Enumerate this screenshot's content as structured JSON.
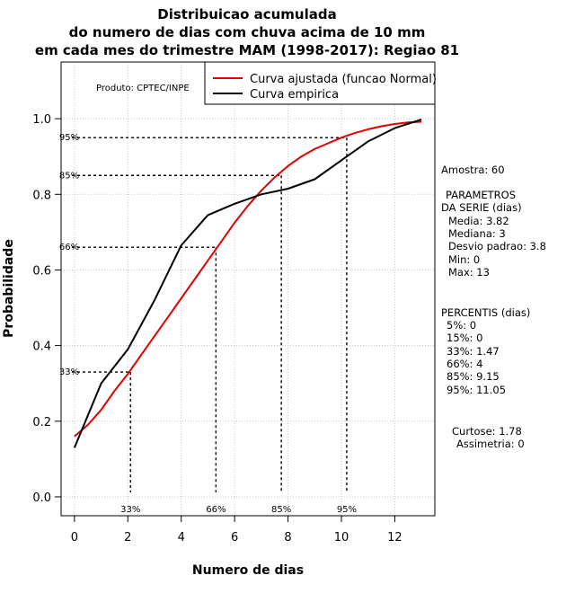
{
  "chart_data": {
    "type": "line",
    "title": [
      "Distribuicao acumulada",
      "do numero de dias com chuva acima de 10 mm",
      "em cada mes do trimestre MAM (1998-2017): Regiao 81"
    ],
    "xlabel": "Numero de dias",
    "ylabel": "Probabilidade",
    "xlim": [
      -0.5,
      13.5
    ],
    "ylim": [
      -0.05,
      1.15
    ],
    "xticks": [
      0,
      2,
      4,
      6,
      8,
      10,
      12
    ],
    "yticks": [
      0.0,
      0.2,
      0.4,
      0.6,
      0.8,
      1.0
    ],
    "xtick_labels": [
      "0",
      "2",
      "4",
      "6",
      "8",
      "10",
      "12"
    ],
    "ytick_labels": [
      "0.0",
      "0.2",
      "0.4",
      "0.6",
      "0.8",
      "1.0"
    ],
    "grid": true,
    "product_label": "Produto: CPTEC/INPE",
    "legend_position": "top-right",
    "series": [
      {
        "name": "Curva ajustada (funcao Normal)",
        "color": "#e00000",
        "x": [
          0,
          0.5,
          1,
          1.5,
          2,
          2.5,
          3,
          3.5,
          4,
          4.5,
          5,
          5.5,
          6,
          6.5,
          7,
          7.5,
          8,
          8.5,
          9,
          9.5,
          10,
          10.5,
          11,
          11.5,
          12,
          12.5,
          13
        ],
        "values": [
          0.16,
          0.19,
          0.23,
          0.28,
          0.325,
          0.375,
          0.425,
          0.475,
          0.525,
          0.575,
          0.625,
          0.675,
          0.725,
          0.77,
          0.81,
          0.845,
          0.875,
          0.9,
          0.92,
          0.935,
          0.95,
          0.962,
          0.972,
          0.98,
          0.986,
          0.99,
          0.992
        ]
      },
      {
        "name": "Curva empirica",
        "color": "#000000",
        "x": [
          0,
          1,
          2,
          3,
          4,
          5,
          6,
          7,
          8,
          9,
          10,
          11,
          12,
          13
        ],
        "values": [
          0.13,
          0.3,
          0.39,
          0.52,
          0.665,
          0.745,
          0.775,
          0.8,
          0.815,
          0.84,
          0.89,
          0.94,
          0.975,
          0.998
        ]
      }
    ],
    "percentile_markers": [
      {
        "label": "33%",
        "prob": 0.33,
        "x": 2.1
      },
      {
        "label": "66%",
        "prob": 0.66,
        "x": 5.3
      },
      {
        "label": "85%",
        "prob": 0.85,
        "x": 7.75
      },
      {
        "label": "95%",
        "prob": 0.95,
        "x": 10.2
      }
    ]
  },
  "side_panel": {
    "amostra": "Amostra: 60",
    "parametros_header_1": "PARAMETROS",
    "parametros_header_2": "DA SERIE (dias)",
    "parametros": [
      "Media: 3.82",
      "Mediana: 3",
      "Desvio padrao: 3.8",
      "Min: 0",
      "Max: 13"
    ],
    "percentis_header": "PERCENTIS (dias)",
    "percentis": [
      "5%: 0",
      "15%: 0",
      "33%: 1.47",
      "66%: 4",
      "85%: 9.15",
      "95%: 11.05"
    ],
    "curtose": "Curtose: 1.78",
    "assimetria": "Assimetria: 0"
  }
}
